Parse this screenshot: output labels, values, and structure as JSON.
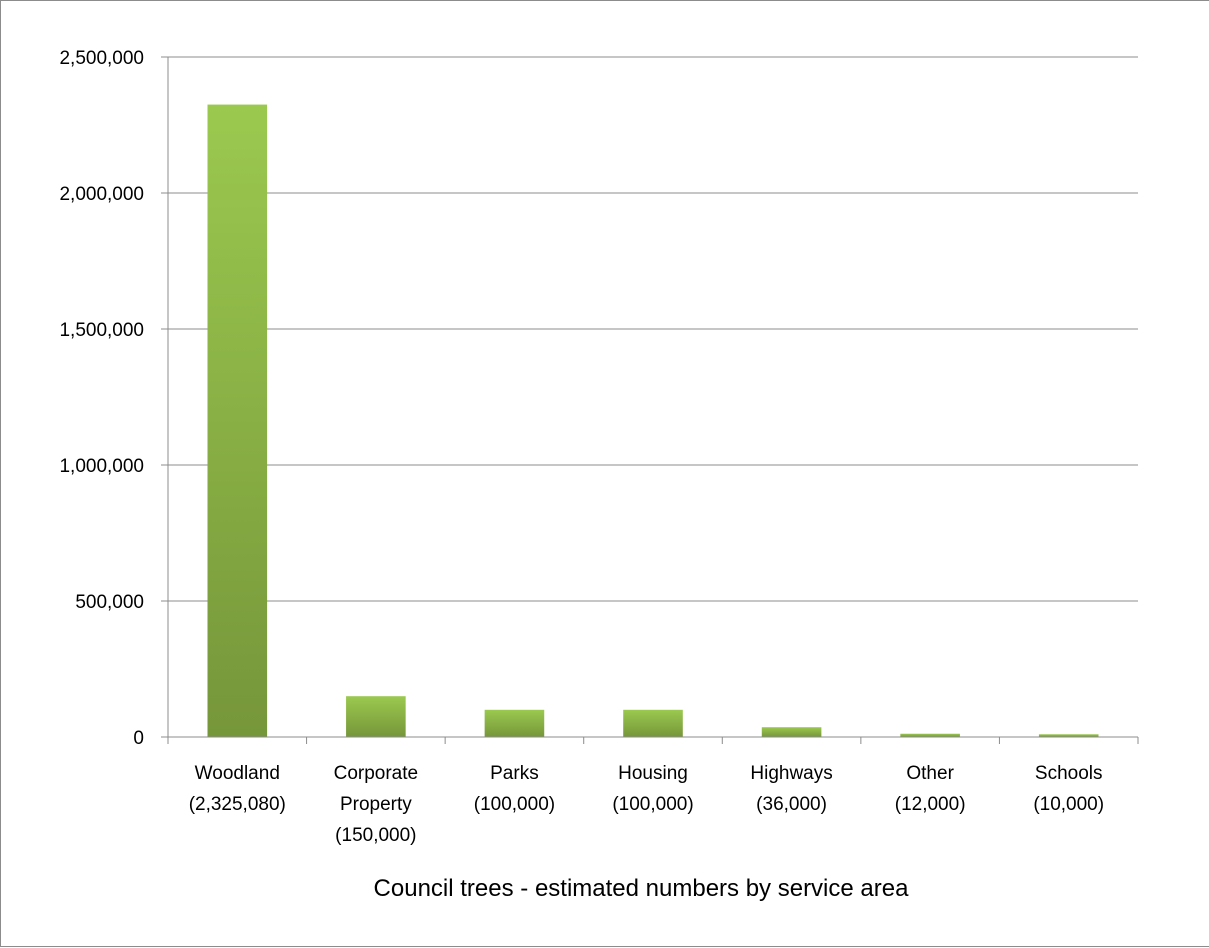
{
  "chart_data": {
    "type": "bar",
    "categories": [
      [
        "Woodland",
        "(2,325,080)"
      ],
      [
        "Corporate",
        "Property",
        "(150,000)"
      ],
      [
        "Parks",
        "(100,000)"
      ],
      [
        "Housing",
        "(100,000)"
      ],
      [
        "Highways",
        "(36,000)"
      ],
      [
        "Other",
        "(12,000)"
      ],
      [
        "Schools",
        "(10,000)"
      ]
    ],
    "values": [
      2325080,
      150000,
      100000,
      100000,
      36000,
      12000,
      10000
    ],
    "xlabel": "Council trees - estimated numbers by service area",
    "ylabel": "",
    "ylim": [
      0,
      2500000
    ],
    "yticks": [
      0,
      500000,
      1000000,
      1500000,
      2000000,
      2500000
    ],
    "ytick_labels": [
      "0",
      "500,000",
      "1,000,000",
      "1,500,000",
      "2,000,000",
      "2,500,000"
    ],
    "grid": true,
    "legend": "none",
    "colors": {
      "bar_top": "#9bc94f",
      "bar_bottom": "#76963a",
      "gridline": "#8c8c8c",
      "axis": "#8c8c8c"
    }
  }
}
